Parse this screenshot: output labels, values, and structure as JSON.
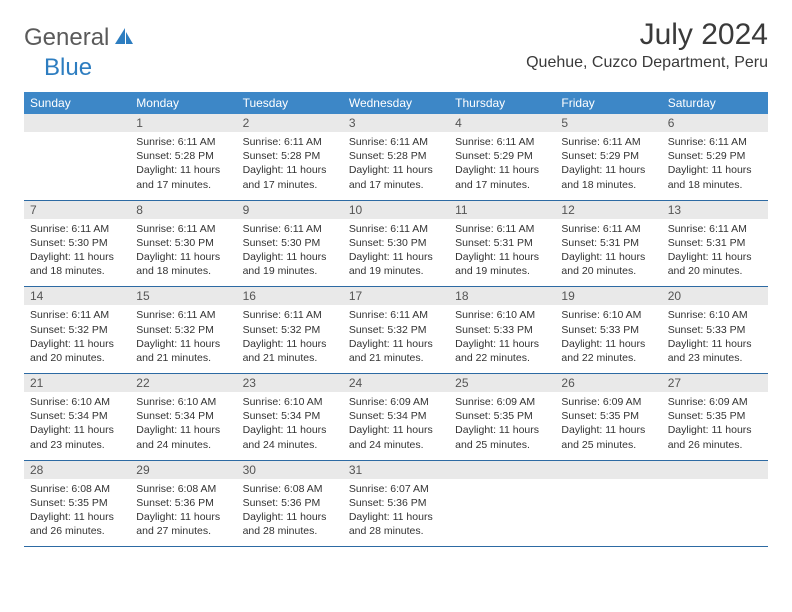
{
  "logo": {
    "text1": "General",
    "text2": "Blue",
    "color1": "#5a5a5a",
    "color2": "#2d7dc0"
  },
  "title": "July 2024",
  "location": "Quehue, Cuzco Department, Peru",
  "colors": {
    "header_bar": "#3d87c7",
    "daynum_bg": "#e9e9e9",
    "week_border": "#2d6aa3",
    "text": "#333333"
  },
  "fonts": {
    "title_size": 30,
    "location_size": 16,
    "dow_size": 12,
    "body_size": 10.5
  },
  "days_of_week": [
    "Sunday",
    "Monday",
    "Tuesday",
    "Wednesday",
    "Thursday",
    "Friday",
    "Saturday"
  ],
  "weeks": [
    [
      null,
      {
        "n": "1",
        "sunrise": "Sunrise: 6:11 AM",
        "sunset": "Sunset: 5:28 PM",
        "day1": "Daylight: 11 hours",
        "day2": "and 17 minutes."
      },
      {
        "n": "2",
        "sunrise": "Sunrise: 6:11 AM",
        "sunset": "Sunset: 5:28 PM",
        "day1": "Daylight: 11 hours",
        "day2": "and 17 minutes."
      },
      {
        "n": "3",
        "sunrise": "Sunrise: 6:11 AM",
        "sunset": "Sunset: 5:28 PM",
        "day1": "Daylight: 11 hours",
        "day2": "and 17 minutes."
      },
      {
        "n": "4",
        "sunrise": "Sunrise: 6:11 AM",
        "sunset": "Sunset: 5:29 PM",
        "day1": "Daylight: 11 hours",
        "day2": "and 17 minutes."
      },
      {
        "n": "5",
        "sunrise": "Sunrise: 6:11 AM",
        "sunset": "Sunset: 5:29 PM",
        "day1": "Daylight: 11 hours",
        "day2": "and 18 minutes."
      },
      {
        "n": "6",
        "sunrise": "Sunrise: 6:11 AM",
        "sunset": "Sunset: 5:29 PM",
        "day1": "Daylight: 11 hours",
        "day2": "and 18 minutes."
      }
    ],
    [
      {
        "n": "7",
        "sunrise": "Sunrise: 6:11 AM",
        "sunset": "Sunset: 5:30 PM",
        "day1": "Daylight: 11 hours",
        "day2": "and 18 minutes."
      },
      {
        "n": "8",
        "sunrise": "Sunrise: 6:11 AM",
        "sunset": "Sunset: 5:30 PM",
        "day1": "Daylight: 11 hours",
        "day2": "and 18 minutes."
      },
      {
        "n": "9",
        "sunrise": "Sunrise: 6:11 AM",
        "sunset": "Sunset: 5:30 PM",
        "day1": "Daylight: 11 hours",
        "day2": "and 19 minutes."
      },
      {
        "n": "10",
        "sunrise": "Sunrise: 6:11 AM",
        "sunset": "Sunset: 5:30 PM",
        "day1": "Daylight: 11 hours",
        "day2": "and 19 minutes."
      },
      {
        "n": "11",
        "sunrise": "Sunrise: 6:11 AM",
        "sunset": "Sunset: 5:31 PM",
        "day1": "Daylight: 11 hours",
        "day2": "and 19 minutes."
      },
      {
        "n": "12",
        "sunrise": "Sunrise: 6:11 AM",
        "sunset": "Sunset: 5:31 PM",
        "day1": "Daylight: 11 hours",
        "day2": "and 20 minutes."
      },
      {
        "n": "13",
        "sunrise": "Sunrise: 6:11 AM",
        "sunset": "Sunset: 5:31 PM",
        "day1": "Daylight: 11 hours",
        "day2": "and 20 minutes."
      }
    ],
    [
      {
        "n": "14",
        "sunrise": "Sunrise: 6:11 AM",
        "sunset": "Sunset: 5:32 PM",
        "day1": "Daylight: 11 hours",
        "day2": "and 20 minutes."
      },
      {
        "n": "15",
        "sunrise": "Sunrise: 6:11 AM",
        "sunset": "Sunset: 5:32 PM",
        "day1": "Daylight: 11 hours",
        "day2": "and 21 minutes."
      },
      {
        "n": "16",
        "sunrise": "Sunrise: 6:11 AM",
        "sunset": "Sunset: 5:32 PM",
        "day1": "Daylight: 11 hours",
        "day2": "and 21 minutes."
      },
      {
        "n": "17",
        "sunrise": "Sunrise: 6:11 AM",
        "sunset": "Sunset: 5:32 PM",
        "day1": "Daylight: 11 hours",
        "day2": "and 21 minutes."
      },
      {
        "n": "18",
        "sunrise": "Sunrise: 6:10 AM",
        "sunset": "Sunset: 5:33 PM",
        "day1": "Daylight: 11 hours",
        "day2": "and 22 minutes."
      },
      {
        "n": "19",
        "sunrise": "Sunrise: 6:10 AM",
        "sunset": "Sunset: 5:33 PM",
        "day1": "Daylight: 11 hours",
        "day2": "and 22 minutes."
      },
      {
        "n": "20",
        "sunrise": "Sunrise: 6:10 AM",
        "sunset": "Sunset: 5:33 PM",
        "day1": "Daylight: 11 hours",
        "day2": "and 23 minutes."
      }
    ],
    [
      {
        "n": "21",
        "sunrise": "Sunrise: 6:10 AM",
        "sunset": "Sunset: 5:34 PM",
        "day1": "Daylight: 11 hours",
        "day2": "and 23 minutes."
      },
      {
        "n": "22",
        "sunrise": "Sunrise: 6:10 AM",
        "sunset": "Sunset: 5:34 PM",
        "day1": "Daylight: 11 hours",
        "day2": "and 24 minutes."
      },
      {
        "n": "23",
        "sunrise": "Sunrise: 6:10 AM",
        "sunset": "Sunset: 5:34 PM",
        "day1": "Daylight: 11 hours",
        "day2": "and 24 minutes."
      },
      {
        "n": "24",
        "sunrise": "Sunrise: 6:09 AM",
        "sunset": "Sunset: 5:34 PM",
        "day1": "Daylight: 11 hours",
        "day2": "and 24 minutes."
      },
      {
        "n": "25",
        "sunrise": "Sunrise: 6:09 AM",
        "sunset": "Sunset: 5:35 PM",
        "day1": "Daylight: 11 hours",
        "day2": "and 25 minutes."
      },
      {
        "n": "26",
        "sunrise": "Sunrise: 6:09 AM",
        "sunset": "Sunset: 5:35 PM",
        "day1": "Daylight: 11 hours",
        "day2": "and 25 minutes."
      },
      {
        "n": "27",
        "sunrise": "Sunrise: 6:09 AM",
        "sunset": "Sunset: 5:35 PM",
        "day1": "Daylight: 11 hours",
        "day2": "and 26 minutes."
      }
    ],
    [
      {
        "n": "28",
        "sunrise": "Sunrise: 6:08 AM",
        "sunset": "Sunset: 5:35 PM",
        "day1": "Daylight: 11 hours",
        "day2": "and 26 minutes."
      },
      {
        "n": "29",
        "sunrise": "Sunrise: 6:08 AM",
        "sunset": "Sunset: 5:36 PM",
        "day1": "Daylight: 11 hours",
        "day2": "and 27 minutes."
      },
      {
        "n": "30",
        "sunrise": "Sunrise: 6:08 AM",
        "sunset": "Sunset: 5:36 PM",
        "day1": "Daylight: 11 hours",
        "day2": "and 28 minutes."
      },
      {
        "n": "31",
        "sunrise": "Sunrise: 6:07 AM",
        "sunset": "Sunset: 5:36 PM",
        "day1": "Daylight: 11 hours",
        "day2": "and 28 minutes."
      },
      null,
      null,
      null
    ]
  ]
}
